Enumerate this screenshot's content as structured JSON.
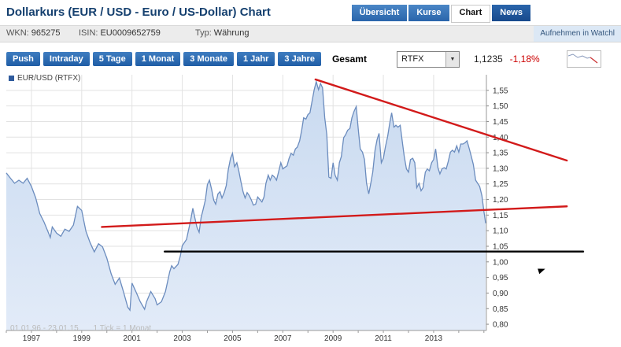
{
  "header": {
    "title": "Dollarkurs (EUR / USD - Euro / US-Dollar) Chart",
    "tabs": [
      {
        "label": "Übersicht",
        "active": false
      },
      {
        "label": "Kurse",
        "active": false
      },
      {
        "label": "Chart",
        "active": true
      },
      {
        "label": "News",
        "active": false
      }
    ]
  },
  "infobar": {
    "wkn_label": "WKN:",
    "wkn_value": "965275",
    "isin_label": "ISIN:",
    "isin_value": "EU0009652759",
    "typ_label": "Typ:",
    "typ_value": "Währung",
    "watchlist": "Aufnehmen in Watchl"
  },
  "toolbar": {
    "buttons": [
      "Push",
      "Intraday",
      "5 Tage",
      "1 Monat",
      "3 Monate",
      "1 Jahr",
      "3 Jahre"
    ],
    "active_range": "Gesamt",
    "source_select": "RTFX",
    "price": "1,1235",
    "change": "-1,18%"
  },
  "icons": {
    "dropdown_arrow": "▼"
  },
  "chart_data": {
    "type": "area",
    "legend": "EUR/USD (RTFX)",
    "watermark": "01.01.96 - 23.01.15",
    "watermark2": "1 Tick = 1 Monat",
    "x_range": [
      1996.0,
      2015.1
    ],
    "x_ticks": [
      1997,
      1999,
      2001,
      2003,
      2005,
      2007,
      2009,
      2011,
      2013
    ],
    "y_axis": {
      "min": 0.78,
      "max": 1.6,
      "tick_min": 0.8,
      "tick_max": 1.55,
      "tick_step": 0.05
    },
    "line_color": "#6b8cbe",
    "fill_top": "#c9daf0",
    "fill_bottom": "#e2ebf8",
    "grid_color": "#e2e2e2",
    "trend_color": "#d21a1a",
    "points": [
      [
        1996.0,
        1.285
      ],
      [
        1996.17,
        1.268
      ],
      [
        1996.33,
        1.252
      ],
      [
        1996.5,
        1.262
      ],
      [
        1996.67,
        1.252
      ],
      [
        1996.83,
        1.268
      ],
      [
        1997.0,
        1.242
      ],
      [
        1997.17,
        1.205
      ],
      [
        1997.33,
        1.155
      ],
      [
        1997.5,
        1.128
      ],
      [
        1997.67,
        1.095
      ],
      [
        1997.75,
        1.078
      ],
      [
        1997.83,
        1.112
      ],
      [
        1998.0,
        1.092
      ],
      [
        1998.17,
        1.082
      ],
      [
        1998.33,
        1.105
      ],
      [
        1998.5,
        1.098
      ],
      [
        1998.67,
        1.118
      ],
      [
        1998.83,
        1.178
      ],
      [
        1999.0,
        1.165
      ],
      [
        1999.17,
        1.098
      ],
      [
        1999.33,
        1.062
      ],
      [
        1999.5,
        1.032
      ],
      [
        1999.67,
        1.058
      ],
      [
        1999.83,
        1.048
      ],
      [
        2000.0,
        1.012
      ],
      [
        2000.17,
        0.962
      ],
      [
        2000.33,
        0.928
      ],
      [
        2000.5,
        0.948
      ],
      [
        2000.67,
        0.902
      ],
      [
        2000.83,
        0.855
      ],
      [
        2000.92,
        0.845
      ],
      [
        2001.0,
        0.932
      ],
      [
        2001.17,
        0.902
      ],
      [
        2001.33,
        0.872
      ],
      [
        2001.5,
        0.848
      ],
      [
        2001.58,
        0.872
      ],
      [
        2001.75,
        0.905
      ],
      [
        2001.92,
        0.882
      ],
      [
        2002.0,
        0.862
      ],
      [
        2002.17,
        0.872
      ],
      [
        2002.33,
        0.905
      ],
      [
        2002.5,
        0.968
      ],
      [
        2002.58,
        0.988
      ],
      [
        2002.67,
        0.978
      ],
      [
        2002.83,
        0.992
      ],
      [
        2002.92,
        1.018
      ],
      [
        2003.0,
        1.052
      ],
      [
        2003.17,
        1.072
      ],
      [
        2003.33,
        1.132
      ],
      [
        2003.42,
        1.172
      ],
      [
        2003.5,
        1.142
      ],
      [
        2003.58,
        1.112
      ],
      [
        2003.67,
        1.095
      ],
      [
        2003.75,
        1.142
      ],
      [
        2003.83,
        1.168
      ],
      [
        2003.92,
        1.198
      ],
      [
        2004.0,
        1.248
      ],
      [
        2004.08,
        1.262
      ],
      [
        2004.17,
        1.232
      ],
      [
        2004.25,
        1.198
      ],
      [
        2004.33,
        1.185
      ],
      [
        2004.42,
        1.218
      ],
      [
        2004.5,
        1.225
      ],
      [
        2004.58,
        1.205
      ],
      [
        2004.67,
        1.222
      ],
      [
        2004.75,
        1.245
      ],
      [
        2004.83,
        1.295
      ],
      [
        2004.92,
        1.332
      ],
      [
        2005.0,
        1.348
      ],
      [
        2005.08,
        1.305
      ],
      [
        2005.17,
        1.318
      ],
      [
        2005.25,
        1.292
      ],
      [
        2005.33,
        1.258
      ],
      [
        2005.42,
        1.225
      ],
      [
        2005.5,
        1.205
      ],
      [
        2005.58,
        1.222
      ],
      [
        2005.67,
        1.212
      ],
      [
        2005.75,
        1.198
      ],
      [
        2005.83,
        1.182
      ],
      [
        2005.92,
        1.185
      ],
      [
        2006.0,
        1.208
      ],
      [
        2006.17,
        1.192
      ],
      [
        2006.25,
        1.208
      ],
      [
        2006.33,
        1.252
      ],
      [
        2006.42,
        1.278
      ],
      [
        2006.5,
        1.262
      ],
      [
        2006.58,
        1.278
      ],
      [
        2006.67,
        1.272
      ],
      [
        2006.75,
        1.262
      ],
      [
        2006.83,
        1.288
      ],
      [
        2006.92,
        1.318
      ],
      [
        2007.0,
        1.298
      ],
      [
        2007.17,
        1.308
      ],
      [
        2007.25,
        1.332
      ],
      [
        2007.33,
        1.348
      ],
      [
        2007.42,
        1.342
      ],
      [
        2007.5,
        1.362
      ],
      [
        2007.58,
        1.368
      ],
      [
        2007.67,
        1.388
      ],
      [
        2007.75,
        1.422
      ],
      [
        2007.83,
        1.462
      ],
      [
        2007.92,
        1.458
      ],
      [
        2008.0,
        1.472
      ],
      [
        2008.08,
        1.478
      ],
      [
        2008.17,
        1.518
      ],
      [
        2008.25,
        1.552
      ],
      [
        2008.33,
        1.578
      ],
      [
        2008.42,
        1.552
      ],
      [
        2008.5,
        1.572
      ],
      [
        2008.58,
        1.558
      ],
      [
        2008.67,
        1.462
      ],
      [
        2008.75,
        1.408
      ],
      [
        2008.83,
        1.272
      ],
      [
        2008.92,
        1.268
      ],
      [
        2009.0,
        1.318
      ],
      [
        2009.08,
        1.278
      ],
      [
        2009.17,
        1.262
      ],
      [
        2009.25,
        1.318
      ],
      [
        2009.33,
        1.338
      ],
      [
        2009.42,
        1.398
      ],
      [
        2009.5,
        1.408
      ],
      [
        2009.58,
        1.422
      ],
      [
        2009.67,
        1.428
      ],
      [
        2009.75,
        1.462
      ],
      [
        2009.83,
        1.482
      ],
      [
        2009.92,
        1.498
      ],
      [
        2010.0,
        1.428
      ],
      [
        2010.08,
        1.362
      ],
      [
        2010.17,
        1.352
      ],
      [
        2010.25,
        1.328
      ],
      [
        2010.33,
        1.252
      ],
      [
        2010.42,
        1.218
      ],
      [
        2010.5,
        1.252
      ],
      [
        2010.58,
        1.288
      ],
      [
        2010.67,
        1.358
      ],
      [
        2010.75,
        1.392
      ],
      [
        2010.83,
        1.412
      ],
      [
        2010.92,
        1.318
      ],
      [
        2011.0,
        1.332
      ],
      [
        2011.08,
        1.368
      ],
      [
        2011.17,
        1.402
      ],
      [
        2011.25,
        1.442
      ],
      [
        2011.33,
        1.478
      ],
      [
        2011.42,
        1.432
      ],
      [
        2011.5,
        1.438
      ],
      [
        2011.58,
        1.432
      ],
      [
        2011.67,
        1.438
      ],
      [
        2011.75,
        1.388
      ],
      [
        2011.83,
        1.338
      ],
      [
        2011.92,
        1.298
      ],
      [
        2012.0,
        1.288
      ],
      [
        2012.08,
        1.328
      ],
      [
        2012.17,
        1.332
      ],
      [
        2012.25,
        1.318
      ],
      [
        2012.33,
        1.238
      ],
      [
        2012.42,
        1.252
      ],
      [
        2012.5,
        1.228
      ],
      [
        2012.58,
        1.238
      ],
      [
        2012.67,
        1.288
      ],
      [
        2012.75,
        1.298
      ],
      [
        2012.83,
        1.292
      ],
      [
        2012.92,
        1.318
      ],
      [
        2013.0,
        1.328
      ],
      [
        2013.08,
        1.362
      ],
      [
        2013.17,
        1.302
      ],
      [
        2013.25,
        1.282
      ],
      [
        2013.33,
        1.298
      ],
      [
        2013.42,
        1.302
      ],
      [
        2013.5,
        1.298
      ],
      [
        2013.58,
        1.322
      ],
      [
        2013.67,
        1.352
      ],
      [
        2013.75,
        1.358
      ],
      [
        2013.83,
        1.352
      ],
      [
        2013.92,
        1.372
      ],
      [
        2014.0,
        1.352
      ],
      [
        2014.08,
        1.378
      ],
      [
        2014.17,
        1.378
      ],
      [
        2014.25,
        1.382
      ],
      [
        2014.33,
        1.388
      ],
      [
        2014.42,
        1.362
      ],
      [
        2014.5,
        1.338
      ],
      [
        2014.58,
        1.312
      ],
      [
        2014.67,
        1.262
      ],
      [
        2014.75,
        1.252
      ],
      [
        2014.83,
        1.242
      ],
      [
        2014.92,
        1.212
      ],
      [
        2015.0,
        1.162
      ],
      [
        2015.07,
        1.124
      ]
    ],
    "trendlines": [
      {
        "name": "resistance",
        "color": "#d21a1a",
        "width": 2.4,
        "from": [
          2008.3,
          1.585
        ],
        "to": [
          2018.3,
          1.325
        ]
      },
      {
        "name": "support",
        "color": "#d21a1a",
        "width": 2.4,
        "from": [
          1999.8,
          1.112
        ],
        "to": [
          2018.3,
          1.178
        ]
      },
      {
        "name": "parity-line",
        "color": "#000000",
        "width": 2.4,
        "from": [
          2002.3,
          1.033
        ],
        "to": [
          2018.95,
          1.033
        ]
      }
    ]
  }
}
